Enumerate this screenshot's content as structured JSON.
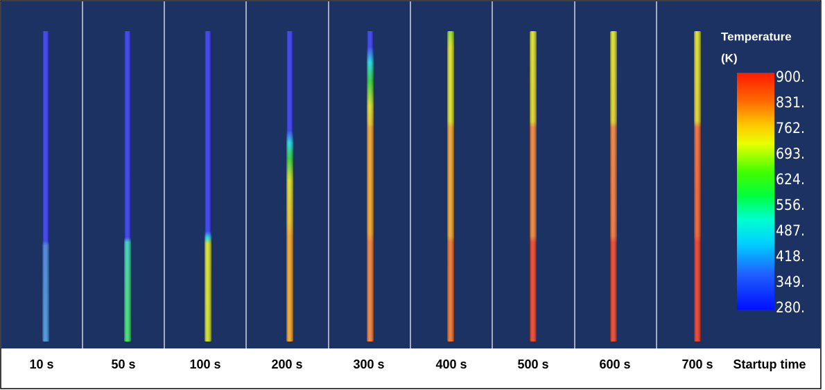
{
  "panels": [
    {
      "label": "10 s"
    },
    {
      "label": "50 s"
    },
    {
      "label": "100 s"
    },
    {
      "label": "200 s"
    },
    {
      "label": "300 s"
    },
    {
      "label": "400 s"
    },
    {
      "label": "500 s"
    },
    {
      "label": "600 s"
    },
    {
      "label": "700 s"
    }
  ],
  "legend": {
    "title": "Temperature",
    "unit": "(K)",
    "ticks": [
      "900.",
      "831.",
      "762.",
      "693.",
      "624.",
      "556.",
      "487.",
      "418.",
      "349.",
      "280."
    ]
  },
  "footer": {
    "label": "Startup time"
  }
}
